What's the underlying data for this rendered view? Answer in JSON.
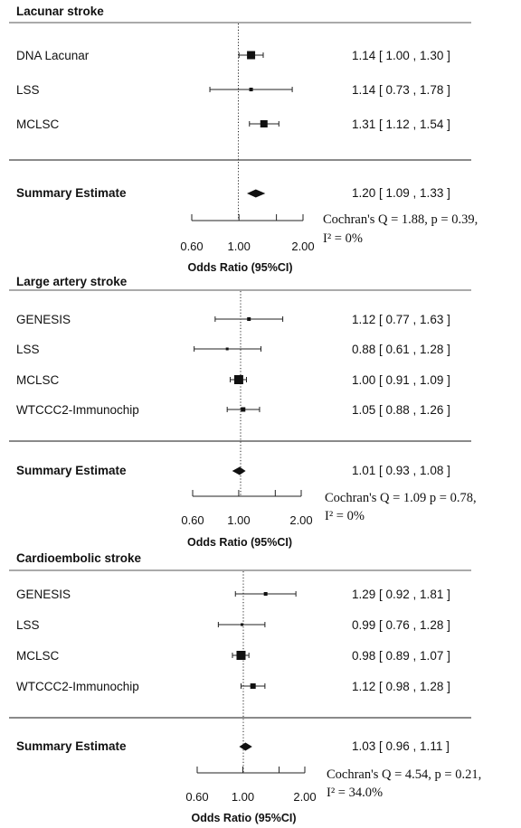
{
  "chart_data": [
    {
      "type": "forest",
      "title": "Lacunar stroke",
      "xlabel": "Odds Ratio (95%CI)",
      "x_scale": "log",
      "ticks": [
        0.6,
        1.0,
        2.0
      ],
      "tick_labels": [
        "0.60",
        "1.00",
        "2.00"
      ],
      "reference_line": 1.0,
      "studies": [
        {
          "name": "DNA Lacunar",
          "or": 1.14,
          "lo": 1.0,
          "hi": 1.3,
          "label": "1.14 [ 1.00 , 1.30 ]"
        },
        {
          "name": "LSS",
          "or": 1.14,
          "lo": 0.73,
          "hi": 1.78,
          "label": "1.14 [ 0.73 , 1.78 ]"
        },
        {
          "name": "MCLSC",
          "or": 1.31,
          "lo": 1.12,
          "hi": 1.54,
          "label": "1.31 [ 1.12 , 1.54 ]"
        }
      ],
      "summary": {
        "name": "Summary Estimate",
        "or": 1.2,
        "lo": 1.09,
        "hi": 1.33,
        "label": "1.20 [ 1.09 , 1.33 ]"
      },
      "heterogeneity": {
        "line1": "Cochran's Q = 1.88, p = 0.39,",
        "line2": "I² = 0%"
      }
    },
    {
      "type": "forest",
      "title": "Large artery stroke",
      "xlabel": "Odds Ratio (95%CI)",
      "x_scale": "log",
      "ticks": [
        0.6,
        1.0,
        2.0
      ],
      "tick_labels": [
        "0.60",
        "1.00",
        "2.00"
      ],
      "reference_line": 1.0,
      "studies": [
        {
          "name": "GENESIS",
          "or": 1.12,
          "lo": 0.77,
          "hi": 1.63,
          "label": "1.12 [ 0.77 , 1.63 ]"
        },
        {
          "name": "LSS",
          "or": 0.88,
          "lo": 0.61,
          "hi": 1.28,
          "label": "0.88 [ 0.61 , 1.28 ]"
        },
        {
          "name": "MCLSC",
          "or": 1.0,
          "lo": 0.91,
          "hi": 1.09,
          "label": "1.00 [ 0.91 , 1.09 ]"
        },
        {
          "name": "WTCCC2-Immunochip",
          "or": 1.05,
          "lo": 0.88,
          "hi": 1.26,
          "label": "1.05 [ 0.88 , 1.26 ]"
        }
      ],
      "summary": {
        "name": "Summary Estimate",
        "or": 1.01,
        "lo": 0.93,
        "hi": 1.08,
        "label": "1.01 [ 0.93 , 1.08 ]"
      },
      "heterogeneity": {
        "line1": "Cochran's Q = 1.09 p = 0.78,",
        "line2": "I² = 0%"
      }
    },
    {
      "type": "forest",
      "title": "Cardioembolic stroke",
      "xlabel": "Odds Ratio (95%CI)",
      "x_scale": "log",
      "ticks": [
        0.6,
        1.0,
        2.0
      ],
      "tick_labels": [
        "0.60",
        "1.00",
        "2.00"
      ],
      "reference_line": 1.0,
      "studies": [
        {
          "name": "GENESIS",
          "or": 1.29,
          "lo": 0.92,
          "hi": 1.81,
          "label": "1.29 [ 0.92 , 1.81 ]"
        },
        {
          "name": "LSS",
          "or": 0.99,
          "lo": 0.76,
          "hi": 1.28,
          "label": "0.99 [ 0.76 , 1.28 ]"
        },
        {
          "name": "MCLSC",
          "or": 0.98,
          "lo": 0.89,
          "hi": 1.07,
          "label": "0.98 [ 0.89 , 1.07 ]"
        },
        {
          "name": "WTCCC2-Immunochip",
          "or": 1.12,
          "lo": 0.98,
          "hi": 1.28,
          "label": "1.12 [ 0.98 , 1.28 ]"
        }
      ],
      "summary": {
        "name": "Summary Estimate",
        "or": 1.03,
        "lo": 0.96,
        "hi": 1.11,
        "label": "1.03 [ 0.96 , 1.11 ]"
      },
      "heterogeneity": {
        "line1": "Cochran's Q = 4.54, p = 0.21,",
        "line2": "I² = 34.0%"
      }
    }
  ]
}
